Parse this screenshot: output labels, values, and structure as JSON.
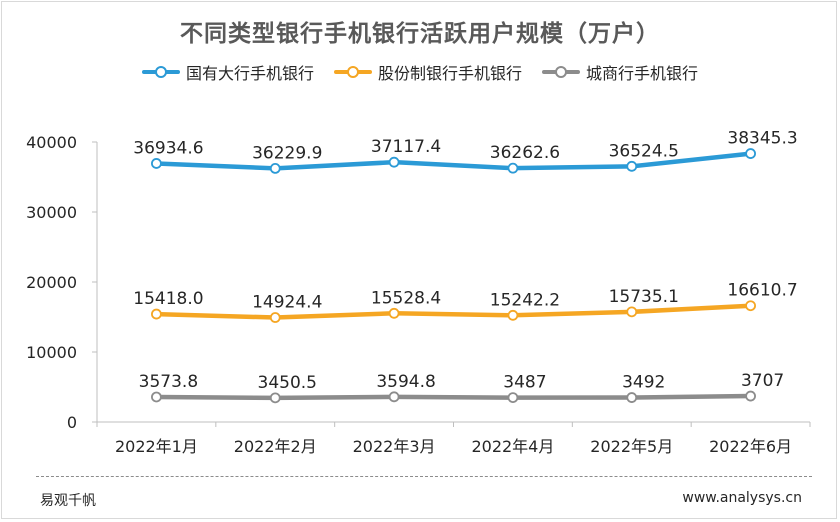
{
  "title": "不同类型银行手机银行活跃用户规模（万户）",
  "source": "易观千帆",
  "website": "www.analysys.cn",
  "colors": {
    "series1": "#2b9ad6",
    "series2": "#f5a623",
    "series3": "#8c8c8c",
    "axis": "#bfbfbf",
    "text": "#262626"
  },
  "chart_data": {
    "type": "line",
    "title": "不同类型银行手机银行活跃用户规模（万户）",
    "xlabel": "",
    "ylabel": "",
    "ylim": [
      0,
      40000
    ],
    "yticks": [
      0,
      10000,
      20000,
      30000,
      40000
    ],
    "grid": false,
    "legend_position": "top",
    "categories": [
      "2022年1月",
      "2022年2月",
      "2022年3月",
      "2022年4月",
      "2022年5月",
      "2022年6月"
    ],
    "series": [
      {
        "name": "国有大行手机银行",
        "color": "#2b9ad6",
        "values": [
          36934.6,
          36229.9,
          37117.4,
          36262.6,
          36524.5,
          38345.3
        ],
        "labels": [
          "36934.6",
          "36229.9",
          "37117.4",
          "36262.6",
          "36524.5",
          "38345.3"
        ]
      },
      {
        "name": "股份制银行手机银行",
        "color": "#f5a623",
        "values": [
          15418.0,
          14924.4,
          15528.4,
          15242.2,
          15735.1,
          16610.7
        ],
        "labels": [
          "15418.0",
          "14924.4",
          "15528.4",
          "15242.2",
          "15735.1",
          "16610.7"
        ]
      },
      {
        "name": "城商行手机银行",
        "color": "#8c8c8c",
        "values": [
          3573.8,
          3450.5,
          3594.8,
          3487,
          3492,
          3707
        ],
        "labels": [
          "3573.8",
          "3450.5",
          "3594.8",
          "3487",
          "3492",
          "3707"
        ]
      }
    ]
  }
}
